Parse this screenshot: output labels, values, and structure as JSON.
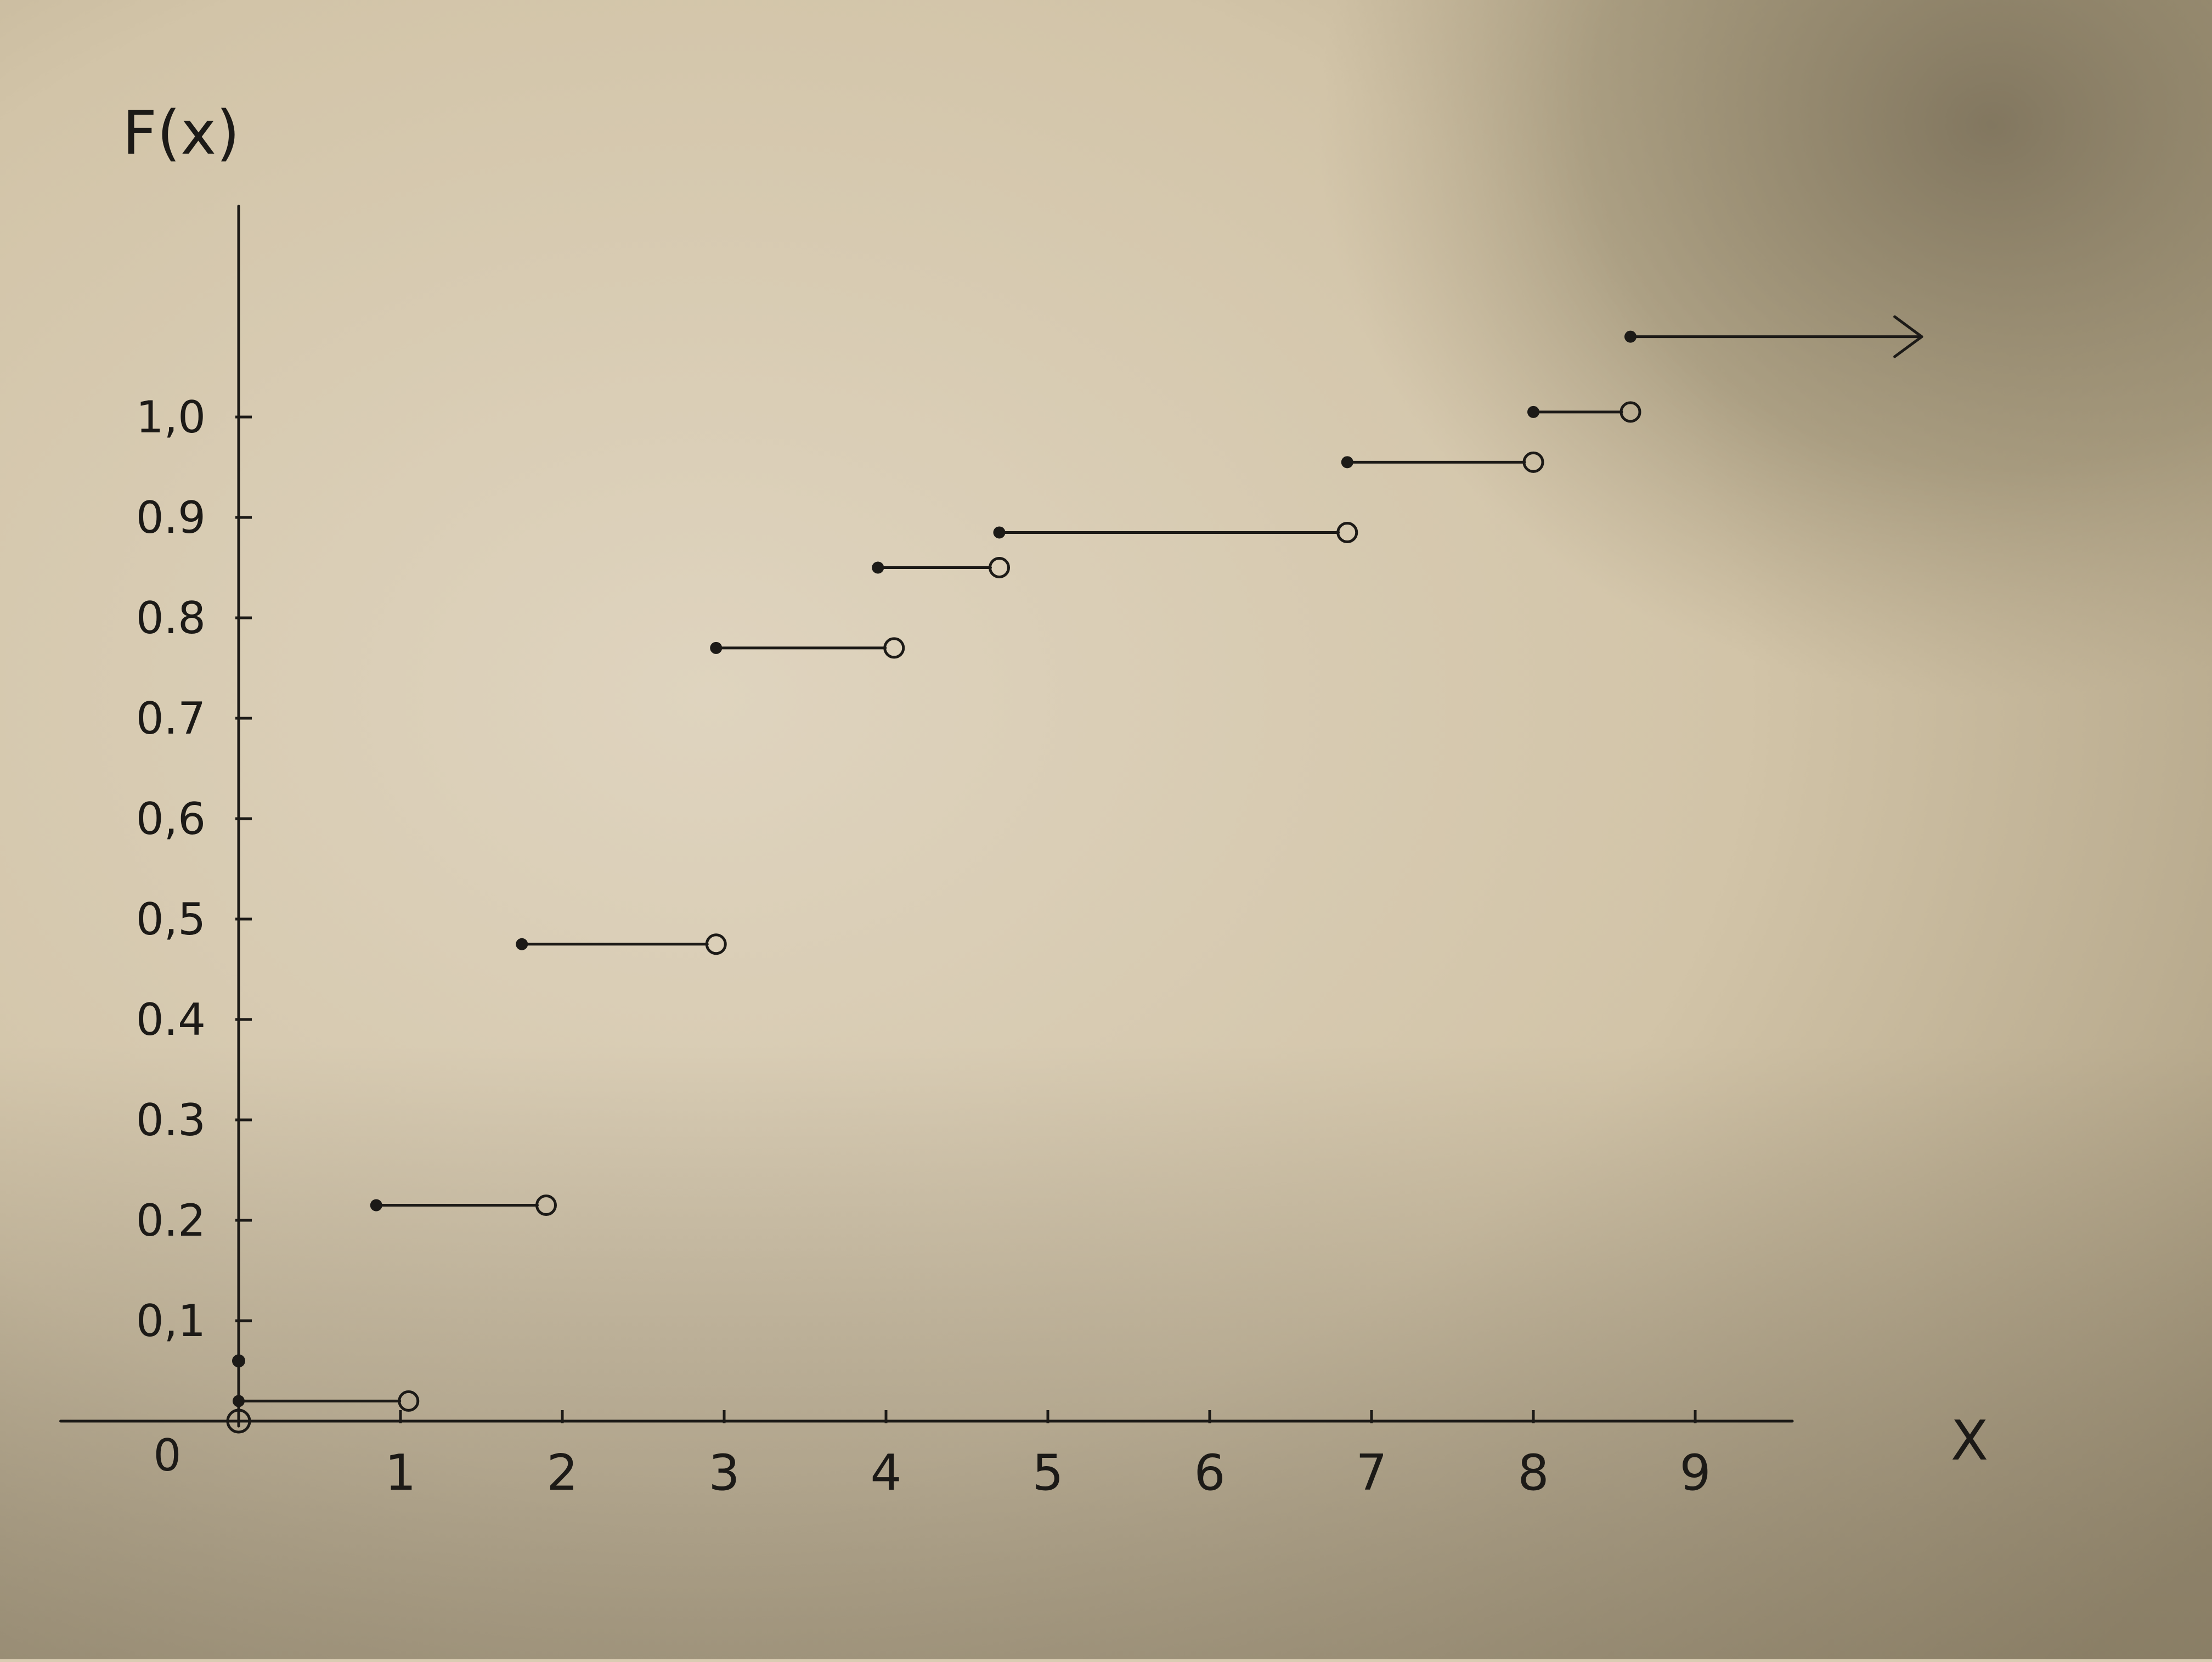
{
  "chart_data": {
    "type": "line",
    "title": "",
    "xlabel": "X",
    "ylabel": "F(x)",
    "xlim": [
      -1.1,
      10.6
    ],
    "ylim": [
      -0.02,
      1.23
    ],
    "origin_label": "0",
    "x_ticks": [
      1,
      2,
      3,
      4,
      5,
      6,
      7,
      8,
      9
    ],
    "x_tick_labels": [
      "1",
      "2",
      "3",
      "4",
      "5",
      "6",
      "7",
      "8",
      "9"
    ],
    "y_ticks": [
      0.1,
      0.2,
      0.3,
      0.4,
      0.5,
      0.6,
      0.7,
      0.8,
      0.9,
      1.0
    ],
    "y_tick_labels": [
      "0,1",
      "0.2",
      "0.3",
      "0.4",
      "0,5",
      "0,6",
      "0.7",
      "0.8",
      "0.9",
      "1,0"
    ],
    "grid": false,
    "series": [
      {
        "steps": [
          {
            "x_start": 0.0,
            "x_end": 1.05,
            "y": 0.02,
            "closed_start": true,
            "open_end": true
          },
          {
            "x_start": 0.85,
            "x_end": 1.9,
            "y": 0.215,
            "closed_start": true,
            "open_end": true
          },
          {
            "x_start": 1.75,
            "x_end": 2.95,
            "y": 0.475,
            "closed_start": true,
            "open_end": true
          },
          {
            "x_start": 2.95,
            "x_end": 4.05,
            "y": 0.77,
            "closed_start": true,
            "open_end": true
          },
          {
            "x_start": 3.95,
            "x_end": 4.7,
            "y": 0.85,
            "closed_start": true,
            "open_end": true
          },
          {
            "x_start": 4.7,
            "x_end": 6.85,
            "y": 0.885,
            "closed_start": true,
            "open_end": true
          },
          {
            "x_start": 6.85,
            "x_end": 8.0,
            "y": 0.955,
            "closed_start": true,
            "open_end": true
          },
          {
            "x_start": 8.0,
            "x_end": 8.6,
            "y": 1.005,
            "closed_start": true,
            "open_end": true
          },
          {
            "x_start": 8.6,
            "x_end": 10.4,
            "y": 1.08,
            "closed_start": true,
            "arrow": true
          }
        ],
        "extra_points": [
          {
            "x": 0.0,
            "y": 0.0,
            "style": "open"
          },
          {
            "x": 0.0,
            "y": 0.06,
            "style": "closed"
          }
        ]
      }
    ]
  },
  "colors": {
    "ink": "#1c1a17",
    "paper_light": "#ddd2bd",
    "paper_mid": "#cfc1a4",
    "shadow": "#857a62"
  }
}
